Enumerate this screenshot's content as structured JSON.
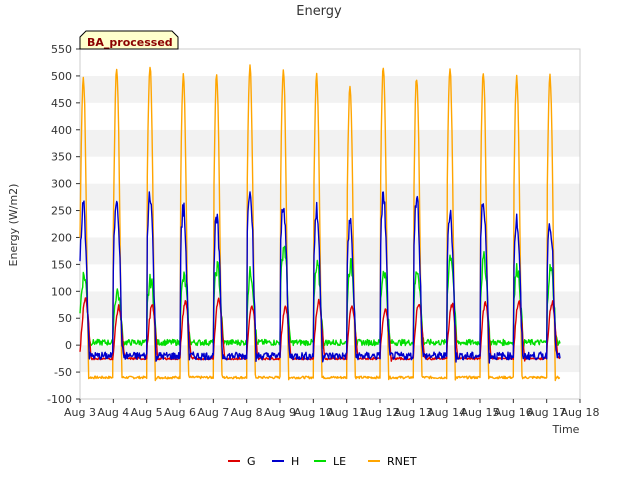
{
  "chart_data": {
    "type": "line",
    "title": "Energy",
    "xlabel": "Time",
    "ylabel": "Energy (W/m2)",
    "annotation": "BA_processed",
    "ylim": [
      -100,
      550
    ],
    "xlim": [
      3,
      18
    ],
    "yticks": [
      -100,
      -50,
      0,
      50,
      100,
      150,
      200,
      250,
      300,
      350,
      400,
      450,
      500,
      550
    ],
    "xticks": [
      {
        "v": 3,
        "label": "Aug 3"
      },
      {
        "v": 4,
        "label": "Aug 4"
      },
      {
        "v": 5,
        "label": "Aug 5"
      },
      {
        "v": 6,
        "label": "Aug 6"
      },
      {
        "v": 7,
        "label": "Aug 7"
      },
      {
        "v": 8,
        "label": "Aug 8"
      },
      {
        "v": 9,
        "label": "Aug 9"
      },
      {
        "v": 10,
        "label": "Aug 10"
      },
      {
        "v": 11,
        "label": "Aug 11"
      },
      {
        "v": 12,
        "label": "Aug 12"
      },
      {
        "v": 13,
        "label": "Aug 13"
      },
      {
        "v": 14,
        "label": "Aug 14"
      },
      {
        "v": 15,
        "label": "Aug 15"
      },
      {
        "v": 16,
        "label": "Aug 16"
      },
      {
        "v": 17,
        "label": "Aug 17"
      },
      {
        "v": 18,
        "label": "Aug 18"
      }
    ],
    "grid": "horizontal bands",
    "legend_position": "bottom",
    "series": [
      {
        "name": "G",
        "color": "#dd0000",
        "night": -25,
        "peaks": [
          85,
          70,
          72,
          80,
          85,
          70,
          72,
          80,
          70,
          68,
          78,
          75,
          78,
          80
        ]
      },
      {
        "name": "H",
        "color": "#0000cc",
        "night": -20,
        "peaks": [
          262,
          278,
          285,
          252,
          232,
          297,
          265,
          248,
          228,
          277,
          278,
          248,
          270,
          232
        ]
      },
      {
        "name": "LE",
        "color": "#00dd00",
        "night": 5,
        "peaks": [
          130,
          100,
          120,
          125,
          145,
          135,
          185,
          145,
          150,
          140,
          140,
          168,
          160,
          142
        ]
      },
      {
        "name": "RNET",
        "color": "#ffa500",
        "night": -60,
        "peaks": [
          497,
          517,
          520,
          503,
          502,
          515,
          513,
          502,
          483,
          519,
          498,
          513,
          508,
          498
        ]
      }
    ]
  }
}
